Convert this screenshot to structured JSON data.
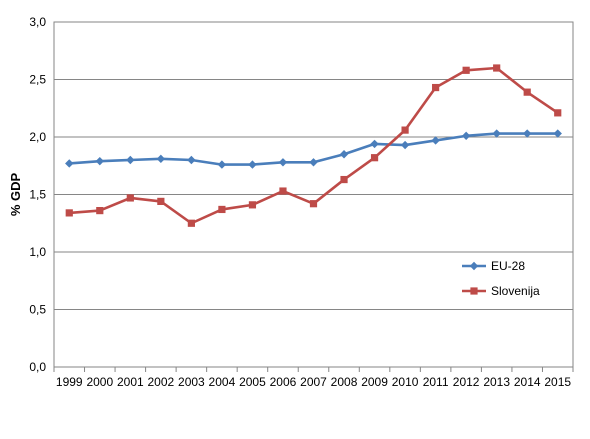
{
  "chart_data": {
    "type": "line",
    "title": "",
    "xlabel": "",
    "ylabel": "% GDP",
    "ylim": [
      0,
      3.0
    ],
    "y_ticks": [
      "0,0",
      "0,5",
      "1,0",
      "1,5",
      "2,0",
      "2,5",
      "3,0"
    ],
    "grid": "horizontal",
    "legend_position": "right, lower-middle",
    "x": [
      "1999",
      "2000",
      "2001",
      "2002",
      "2003",
      "2004",
      "2005",
      "2006",
      "2007",
      "2008",
      "2009",
      "2010",
      "2011",
      "2012",
      "2013",
      "2014",
      "2015"
    ],
    "series": [
      {
        "name": "EU-28",
        "color": "#4a7ebb",
        "marker": "diamond",
        "values": [
          1.77,
          1.79,
          1.8,
          1.81,
          1.8,
          1.76,
          1.76,
          1.78,
          1.78,
          1.85,
          1.94,
          1.93,
          1.97,
          2.01,
          2.03,
          2.03,
          2.03
        ]
      },
      {
        "name": "Slovenija",
        "color": "#be4b48",
        "marker": "square",
        "values": [
          1.34,
          1.36,
          1.47,
          1.44,
          1.25,
          1.37,
          1.41,
          1.53,
          1.42,
          1.63,
          1.82,
          2.06,
          2.43,
          2.58,
          2.6,
          2.39,
          2.21
        ]
      }
    ]
  }
}
